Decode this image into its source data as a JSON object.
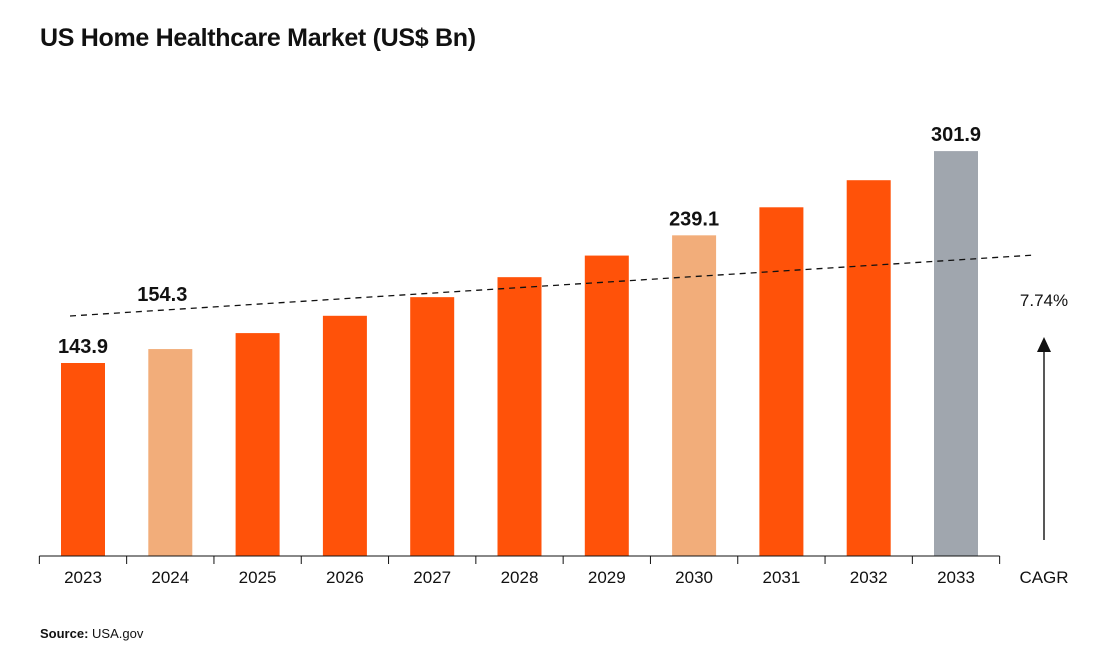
{
  "chart_data": {
    "type": "bar",
    "title": "US Home Healthcare Market (US$ Bn)",
    "categories": [
      "2023",
      "2024",
      "2025",
      "2026",
      "2027",
      "2028",
      "2029",
      "2030",
      "2031",
      "2032",
      "2033"
    ],
    "values": [
      143.9,
      154.3,
      166.2,
      179.1,
      193.0,
      207.9,
      224.0,
      239.1,
      260.0,
      280.2,
      301.9
    ],
    "data_labels": [
      {
        "index": 0,
        "text": "143.9"
      },
      {
        "index": 1,
        "text": "154.3"
      },
      {
        "index": 7,
        "text": "239.1"
      },
      {
        "index": 10,
        "text": "301.9"
      }
    ],
    "bar_colors": [
      "#ff5209",
      "#f2ad7a",
      "#ff5209",
      "#ff5209",
      "#ff5209",
      "#ff5209",
      "#ff5209",
      "#f2ad7a",
      "#ff5209",
      "#ff5209",
      "#a0a6ae"
    ],
    "ylim": [
      0,
      340
    ],
    "trend_line": {
      "style": "dashed",
      "color": "#111111"
    },
    "cagr": {
      "label": "CAGR",
      "value": "7.74%"
    },
    "grid": false,
    "legend": "none"
  },
  "source": {
    "label": "Source:",
    "text": "USA.gov"
  }
}
